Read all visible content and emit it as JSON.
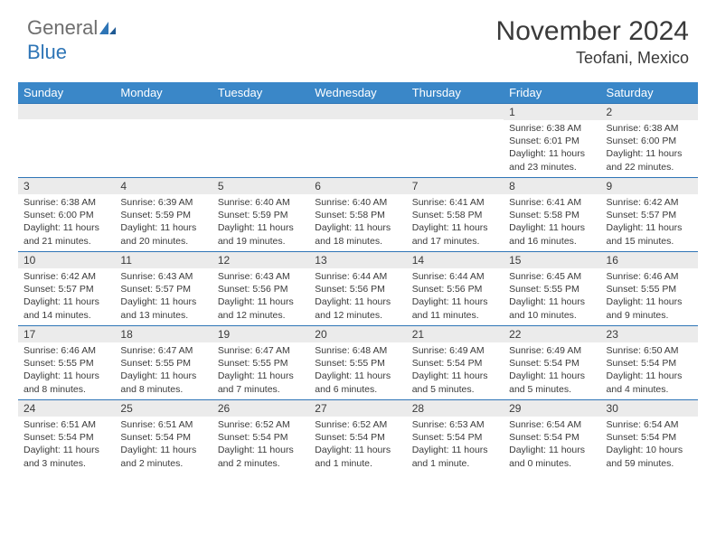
{
  "logo": {
    "part1": "General",
    "part2": "Blue"
  },
  "title": "November 2024",
  "location": "Teofani, Mexico",
  "colors": {
    "header_bg": "#3a87c8",
    "header_text": "#ffffff",
    "daynum_bg": "#ebebeb",
    "border_top": "#2e75b6",
    "text": "#3a3a3a",
    "logo_gray": "#6e6e6e",
    "logo_blue": "#2e75b6"
  },
  "weekdays": [
    "Sunday",
    "Monday",
    "Tuesday",
    "Wednesday",
    "Thursday",
    "Friday",
    "Saturday"
  ],
  "weeks": [
    [
      {
        "day": "",
        "lines": []
      },
      {
        "day": "",
        "lines": []
      },
      {
        "day": "",
        "lines": []
      },
      {
        "day": "",
        "lines": []
      },
      {
        "day": "",
        "lines": []
      },
      {
        "day": "1",
        "lines": [
          "Sunrise: 6:38 AM",
          "Sunset: 6:01 PM",
          "Daylight: 11 hours and 23 minutes."
        ]
      },
      {
        "day": "2",
        "lines": [
          "Sunrise: 6:38 AM",
          "Sunset: 6:00 PM",
          "Daylight: 11 hours and 22 minutes."
        ]
      }
    ],
    [
      {
        "day": "3",
        "lines": [
          "Sunrise: 6:38 AM",
          "Sunset: 6:00 PM",
          "Daylight: 11 hours and 21 minutes."
        ]
      },
      {
        "day": "4",
        "lines": [
          "Sunrise: 6:39 AM",
          "Sunset: 5:59 PM",
          "Daylight: 11 hours and 20 minutes."
        ]
      },
      {
        "day": "5",
        "lines": [
          "Sunrise: 6:40 AM",
          "Sunset: 5:59 PM",
          "Daylight: 11 hours and 19 minutes."
        ]
      },
      {
        "day": "6",
        "lines": [
          "Sunrise: 6:40 AM",
          "Sunset: 5:58 PM",
          "Daylight: 11 hours and 18 minutes."
        ]
      },
      {
        "day": "7",
        "lines": [
          "Sunrise: 6:41 AM",
          "Sunset: 5:58 PM",
          "Daylight: 11 hours and 17 minutes."
        ]
      },
      {
        "day": "8",
        "lines": [
          "Sunrise: 6:41 AM",
          "Sunset: 5:58 PM",
          "Daylight: 11 hours and 16 minutes."
        ]
      },
      {
        "day": "9",
        "lines": [
          "Sunrise: 6:42 AM",
          "Sunset: 5:57 PM",
          "Daylight: 11 hours and 15 minutes."
        ]
      }
    ],
    [
      {
        "day": "10",
        "lines": [
          "Sunrise: 6:42 AM",
          "Sunset: 5:57 PM",
          "Daylight: 11 hours and 14 minutes."
        ]
      },
      {
        "day": "11",
        "lines": [
          "Sunrise: 6:43 AM",
          "Sunset: 5:57 PM",
          "Daylight: 11 hours and 13 minutes."
        ]
      },
      {
        "day": "12",
        "lines": [
          "Sunrise: 6:43 AM",
          "Sunset: 5:56 PM",
          "Daylight: 11 hours and 12 minutes."
        ]
      },
      {
        "day": "13",
        "lines": [
          "Sunrise: 6:44 AM",
          "Sunset: 5:56 PM",
          "Daylight: 11 hours and 12 minutes."
        ]
      },
      {
        "day": "14",
        "lines": [
          "Sunrise: 6:44 AM",
          "Sunset: 5:56 PM",
          "Daylight: 11 hours and 11 minutes."
        ]
      },
      {
        "day": "15",
        "lines": [
          "Sunrise: 6:45 AM",
          "Sunset: 5:55 PM",
          "Daylight: 11 hours and 10 minutes."
        ]
      },
      {
        "day": "16",
        "lines": [
          "Sunrise: 6:46 AM",
          "Sunset: 5:55 PM",
          "Daylight: 11 hours and 9 minutes."
        ]
      }
    ],
    [
      {
        "day": "17",
        "lines": [
          "Sunrise: 6:46 AM",
          "Sunset: 5:55 PM",
          "Daylight: 11 hours and 8 minutes."
        ]
      },
      {
        "day": "18",
        "lines": [
          "Sunrise: 6:47 AM",
          "Sunset: 5:55 PM",
          "Daylight: 11 hours and 8 minutes."
        ]
      },
      {
        "day": "19",
        "lines": [
          "Sunrise: 6:47 AM",
          "Sunset: 5:55 PM",
          "Daylight: 11 hours and 7 minutes."
        ]
      },
      {
        "day": "20",
        "lines": [
          "Sunrise: 6:48 AM",
          "Sunset: 5:55 PM",
          "Daylight: 11 hours and 6 minutes."
        ]
      },
      {
        "day": "21",
        "lines": [
          "Sunrise: 6:49 AM",
          "Sunset: 5:54 PM",
          "Daylight: 11 hours and 5 minutes."
        ]
      },
      {
        "day": "22",
        "lines": [
          "Sunrise: 6:49 AM",
          "Sunset: 5:54 PM",
          "Daylight: 11 hours and 5 minutes."
        ]
      },
      {
        "day": "23",
        "lines": [
          "Sunrise: 6:50 AM",
          "Sunset: 5:54 PM",
          "Daylight: 11 hours and 4 minutes."
        ]
      }
    ],
    [
      {
        "day": "24",
        "lines": [
          "Sunrise: 6:51 AM",
          "Sunset: 5:54 PM",
          "Daylight: 11 hours and 3 minutes."
        ]
      },
      {
        "day": "25",
        "lines": [
          "Sunrise: 6:51 AM",
          "Sunset: 5:54 PM",
          "Daylight: 11 hours and 2 minutes."
        ]
      },
      {
        "day": "26",
        "lines": [
          "Sunrise: 6:52 AM",
          "Sunset: 5:54 PM",
          "Daylight: 11 hours and 2 minutes."
        ]
      },
      {
        "day": "27",
        "lines": [
          "Sunrise: 6:52 AM",
          "Sunset: 5:54 PM",
          "Daylight: 11 hours and 1 minute."
        ]
      },
      {
        "day": "28",
        "lines": [
          "Sunrise: 6:53 AM",
          "Sunset: 5:54 PM",
          "Daylight: 11 hours and 1 minute."
        ]
      },
      {
        "day": "29",
        "lines": [
          "Sunrise: 6:54 AM",
          "Sunset: 5:54 PM",
          "Daylight: 11 hours and 0 minutes."
        ]
      },
      {
        "day": "30",
        "lines": [
          "Sunrise: 6:54 AM",
          "Sunset: 5:54 PM",
          "Daylight: 10 hours and 59 minutes."
        ]
      }
    ]
  ]
}
